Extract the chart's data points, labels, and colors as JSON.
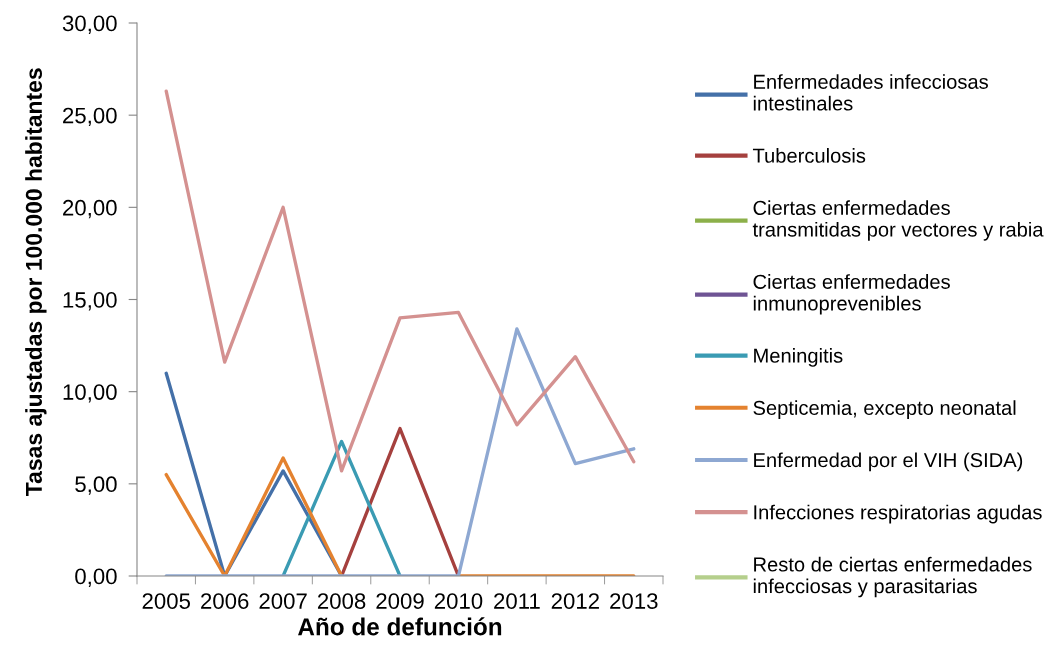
{
  "chart_data": {
    "type": "line",
    "xlabel": "Año de defunción",
    "ylabel": "Tasas ajustadas por 100.000 habitantes",
    "legend": "right",
    "categories": [
      "2005",
      "2006",
      "2007",
      "2008",
      "2009",
      "2010",
      "2011",
      "2012",
      "2013"
    ],
    "ylim": [
      0,
      30
    ],
    "yticks": [
      {
        "value": 0,
        "label": "0,00"
      },
      {
        "value": 5,
        "label": "5,00"
      },
      {
        "value": 10,
        "label": "10,00"
      },
      {
        "value": 15,
        "label": "15,00"
      },
      {
        "value": 20,
        "label": "20,00"
      },
      {
        "value": 25,
        "label": "25,00"
      },
      {
        "value": 30,
        "label": "30,00"
      }
    ],
    "series": [
      {
        "name": "Enfermedades infecciosas intestinales",
        "color": "#4470a8",
        "values": [
          11.0,
          0,
          5.7,
          0,
          null,
          null,
          null,
          null,
          null
        ]
      },
      {
        "name": "Tuberculosis",
        "color": "#a5403e",
        "values": [
          null,
          null,
          null,
          0,
          8.0,
          0,
          null,
          null,
          null
        ]
      },
      {
        "name": "Ciertas enfermedades transmitidas por vectores y rabia",
        "color": "#8cb04a",
        "values": [
          null,
          null,
          null,
          null,
          null,
          null,
          null,
          null,
          null
        ]
      },
      {
        "name": "Ciertas enfermedades inmunoprevenibles",
        "color": "#6f5494",
        "values": [
          null,
          null,
          null,
          null,
          null,
          null,
          null,
          null,
          null
        ]
      },
      {
        "name": "Meningitis",
        "color": "#3a9bb3",
        "values": [
          null,
          null,
          0,
          7.3,
          0,
          null,
          null,
          null,
          null
        ]
      },
      {
        "name": "Septicemia, excepto neonatal",
        "color": "#e4822f",
        "values": [
          5.5,
          0,
          6.4,
          0,
          null,
          0,
          0,
          0,
          0
        ]
      },
      {
        "name": "Enfermedad por el VIH (SIDA)",
        "color": "#8ea8d2",
        "values": [
          0,
          0,
          0,
          0,
          0,
          0,
          13.4,
          6.1,
          6.9
        ]
      },
      {
        "name": "Infecciones respiratorias agudas",
        "color": "#d49190",
        "values": [
          26.3,
          11.6,
          20.0,
          5.7,
          14.0,
          14.3,
          8.2,
          11.9,
          6.2
        ]
      },
      {
        "name": "Resto de ciertas enfermedades infecciosas y parasitarias",
        "color": "#b5cf8c",
        "values": [
          null,
          null,
          null,
          null,
          null,
          null,
          null,
          null,
          null
        ]
      }
    ]
  }
}
